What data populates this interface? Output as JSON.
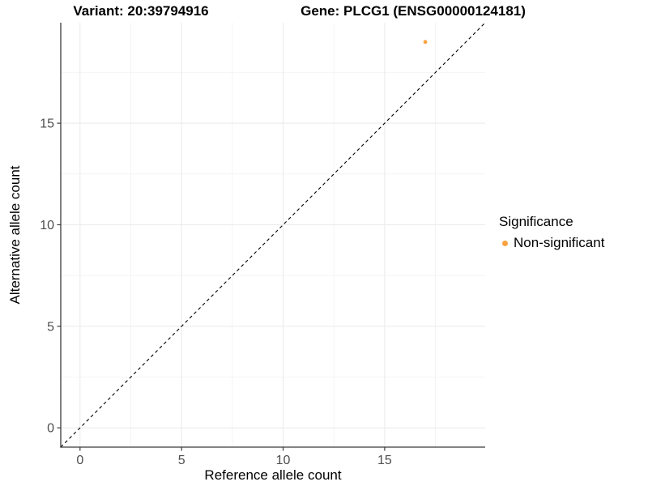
{
  "chart_data": {
    "type": "scatter",
    "title_left": "Variant: 20:39794916",
    "title_right": "Gene: PLCG1 (ENSG00000124181)",
    "xlabel": "Reference allele count",
    "ylabel": "Alternative allele count",
    "xlim": [
      -0.95,
      19.95
    ],
    "ylim": [
      -0.95,
      19.95
    ],
    "x_ticks": [
      0,
      5,
      10,
      15
    ],
    "y_ticks": [
      0,
      5,
      10,
      15
    ],
    "x_minor_ticks": [
      2.5,
      7.5,
      12.5,
      17.5
    ],
    "y_minor_ticks": [
      2.5,
      7.5,
      12.5,
      17.5
    ],
    "grid": true,
    "identity_line": {
      "style": "dashed",
      "color": "#000000",
      "equation": "y = x"
    },
    "series": [
      {
        "name": "Non-significant",
        "color": "#F9A242",
        "points": [
          {
            "x": 17,
            "y": 19
          }
        ]
      }
    ],
    "legend": {
      "title": "Significance",
      "position": "right",
      "entries": [
        {
          "label": "Non-significant",
          "color": "#F9A242"
        }
      ]
    }
  }
}
